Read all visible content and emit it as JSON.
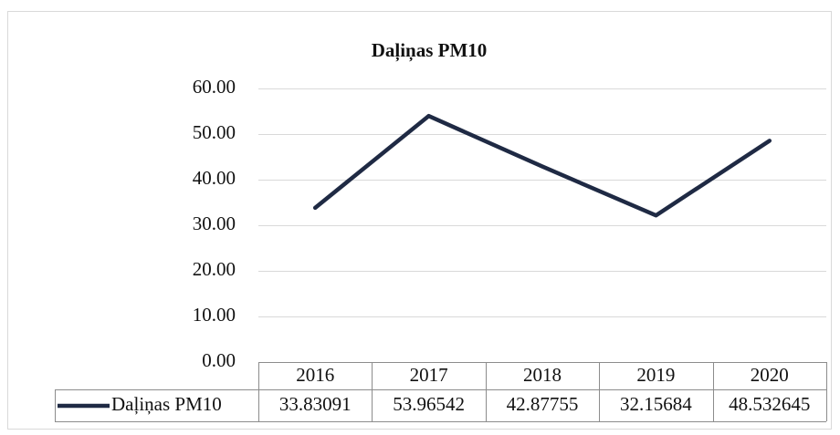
{
  "chart_data": {
    "type": "line",
    "title": "Daļiņas PM10",
    "categories": [
      "2016",
      "2017",
      "2018",
      "2019",
      "2020"
    ],
    "series": [
      {
        "name": "Daļiņas PM10",
        "color": "#1f2a44",
        "values": [
          33.83091,
          53.96542,
          42.87755,
          32.15684,
          48.532645
        ]
      }
    ],
    "ylim": [
      0,
      60
    ],
    "yticks": [
      {
        "value": 0,
        "label": "0.00"
      },
      {
        "value": 10,
        "label": "10.00"
      },
      {
        "value": 20,
        "label": "20.00"
      },
      {
        "value": 30,
        "label": "30.00"
      },
      {
        "value": 40,
        "label": "40.00"
      },
      {
        "value": 50,
        "label": "50.00"
      },
      {
        "value": 60,
        "label": "60.00"
      }
    ],
    "grid": true
  }
}
